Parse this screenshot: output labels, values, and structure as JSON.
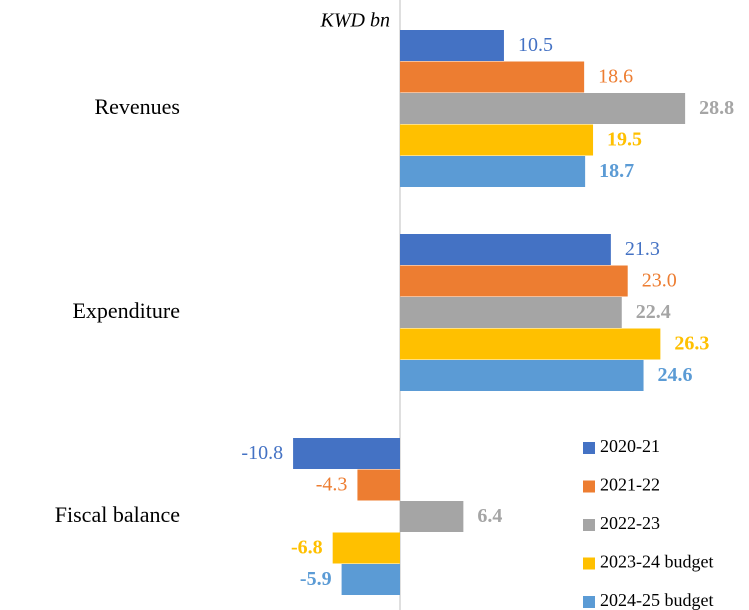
{
  "chart_data": {
    "type": "bar",
    "orientation": "horizontal",
    "unit_label": "KWD bn",
    "categories": [
      "Revenues",
      "Expenditure",
      "Fiscal balance"
    ],
    "series": [
      {
        "name": "2020-21",
        "color": "#4472c4",
        "values": [
          10.5,
          21.3,
          -10.8
        ],
        "value_labels": [
          "10.5",
          "21.3",
          "-10.8"
        ]
      },
      {
        "name": "2021-22",
        "color": "#ed7d31",
        "values": [
          18.6,
          23.0,
          -4.3
        ],
        "value_labels": [
          "18.6",
          "23.0",
          "-4.3"
        ]
      },
      {
        "name": "2022-23",
        "color": "#a5a5a5",
        "values": [
          28.8,
          22.4,
          6.4
        ],
        "value_labels": [
          "28.8",
          "22.4",
          "6.4"
        ]
      },
      {
        "name": "2023-24 budget",
        "color": "#ffc000",
        "values": [
          19.5,
          26.3,
          -6.8
        ],
        "value_labels": [
          "19.5",
          "26.3",
          "-6.8"
        ]
      },
      {
        "name": "2024-25 budget",
        "color": "#5b9bd5",
        "values": [
          18.7,
          24.6,
          -5.9
        ],
        "value_labels": [
          "18.7",
          "24.6",
          "-5.9"
        ]
      }
    ],
    "legend": "lower right"
  }
}
